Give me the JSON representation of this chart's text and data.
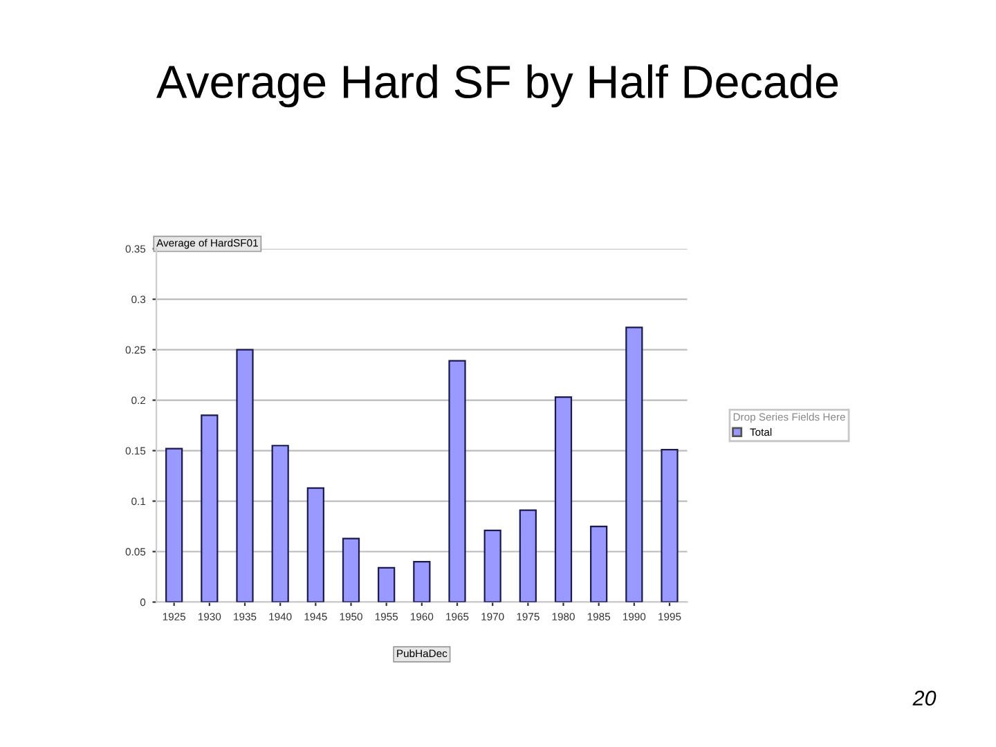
{
  "chart_data": {
    "type": "bar",
    "title": "Average Hard SF by Half Decade",
    "ylabel": "Average of HardSF01",
    "xlabel": "PubHaDec",
    "legend_title": "Drop Series Fields Here",
    "categories": [
      "1925",
      "1930",
      "1935",
      "1940",
      "1945",
      "1950",
      "1955",
      "1960",
      "1965",
      "1970",
      "1975",
      "1980",
      "1985",
      "1990",
      "1995"
    ],
    "series": [
      {
        "name": "Total",
        "color": "#9999ff",
        "values": [
          0.152,
          0.185,
          0.25,
          0.155,
          0.113,
          0.063,
          0.034,
          0.04,
          0.239,
          0.071,
          0.091,
          0.203,
          0.075,
          0.272,
          0.151
        ]
      }
    ],
    "ylim": [
      0,
      0.35
    ],
    "yticks": [
      0,
      0.05,
      0.1,
      0.15,
      0.2,
      0.25,
      0.3,
      0.35
    ],
    "grid": "y",
    "legend": "right",
    "annotations": [
      "20"
    ]
  }
}
